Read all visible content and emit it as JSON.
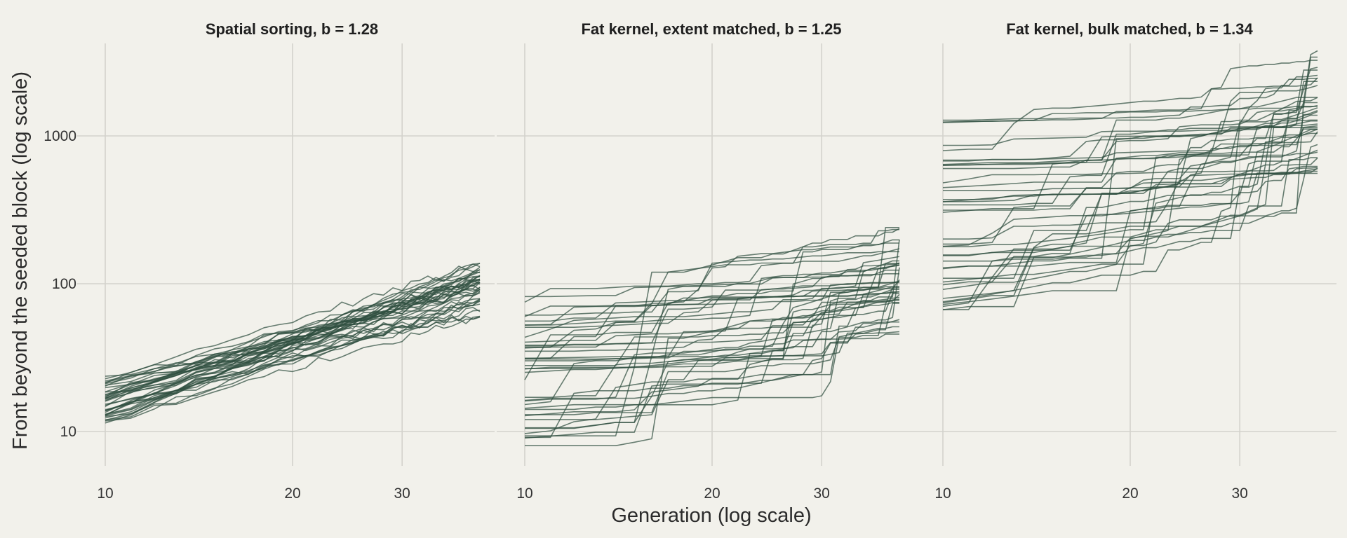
{
  "figure": {
    "background": "#f2f1eb",
    "line_color": "#2f4f40",
    "grid_color": "#d3d2cc",
    "xlabel": "Generation (log scale)",
    "ylabel": "Front beyond the seeded block (log scale)"
  },
  "chart_data": [
    {
      "type": "line",
      "title": "Spatial sorting, b = 1.28",
      "x_scale": "log",
      "y_scale": "log",
      "x_ticks": [
        10,
        20,
        30
      ],
      "y_ticks": [
        10,
        100,
        1000
      ],
      "xlim": [
        10,
        40
      ],
      "ylim": [
        5.8,
        4300
      ],
      "grid": true,
      "n_series": 40,
      "generator": {
        "kind": "smooth",
        "y_start_range": [
          11,
          24
        ],
        "y_end_range": [
          55,
          145
        ],
        "seed": 11
      }
    },
    {
      "type": "line",
      "title": "Fat kernel, extent matched, b = 1.25",
      "x_scale": "log",
      "y_scale": "log",
      "x_ticks": [
        10,
        20,
        30
      ],
      "y_ticks": [
        10,
        100,
        1000
      ],
      "xlim": [
        10,
        40
      ],
      "ylim": [
        5.8,
        4300
      ],
      "grid": true,
      "n_series": 40,
      "generator": {
        "kind": "jumpy",
        "y_start_range": [
          7,
          88
        ],
        "y_end_range": [
          40,
          285
        ],
        "seed": 23
      }
    },
    {
      "type": "line",
      "title": "Fat kernel, bulk matched, b = 1.34",
      "x_scale": "log",
      "y_scale": "log",
      "x_ticks": [
        10,
        20,
        30
      ],
      "y_ticks": [
        10,
        100,
        1000
      ],
      "xlim": [
        10,
        40
      ],
      "ylim": [
        5.8,
        4300
      ],
      "grid": true,
      "n_series": 40,
      "generator": {
        "kind": "jumpy",
        "y_start_range": [
          58,
          1300
        ],
        "y_end_range": [
          400,
          3000
        ],
        "seed": 37
      }
    }
  ]
}
